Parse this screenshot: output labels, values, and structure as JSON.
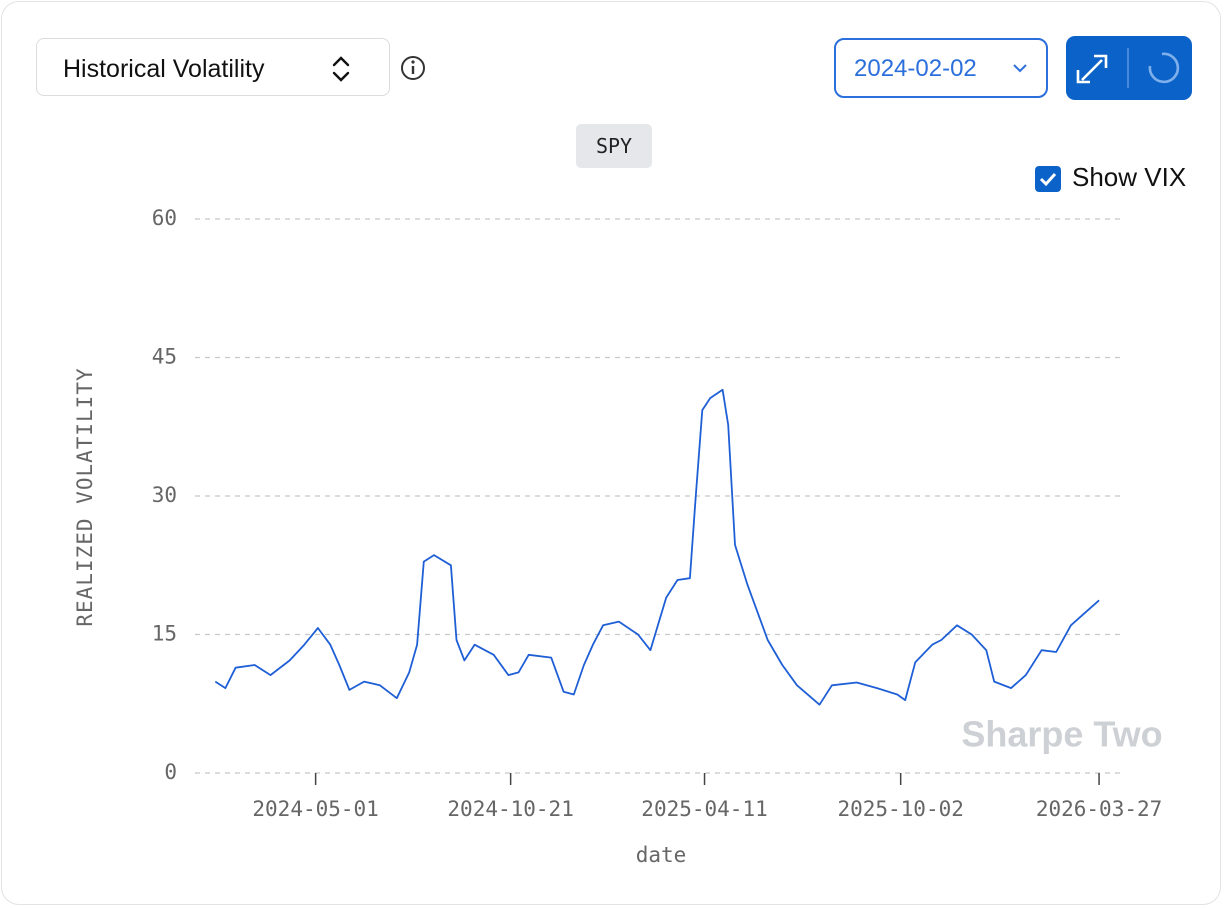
{
  "ui": {
    "metric": "Historical Volatility",
    "start_date": "2024-02-02",
    "ticker": "SPY",
    "vix_label": "Show VIX",
    "watermark": "Sharpe Two"
  },
  "chart_data": {
    "type": "line",
    "x_label": "date",
    "y_label": "REALIZED VOLATILITY",
    "x": [
      "2024-02-02",
      "2024-02-11",
      "2024-02-20",
      "2024-03-08",
      "2024-03-22",
      "2024-04-08",
      "2024-04-21",
      "2024-05-03",
      "2024-05-14",
      "2024-05-22",
      "2024-05-31",
      "2024-06-13",
      "2024-06-27",
      "2024-07-12",
      "2024-07-23",
      "2024-07-30",
      "2024-08-05",
      "2024-08-14",
      "2024-08-29",
      "2024-09-03",
      "2024-09-10",
      "2024-09-19",
      "2024-10-06",
      "2024-10-19",
      "2024-10-28",
      "2024-11-06",
      "2024-11-26",
      "2024-12-07",
      "2024-12-16",
      "2024-12-25",
      "2025-01-02",
      "2025-01-11",
      "2025-01-25",
      "2025-02-11",
      "2025-02-22",
      "2025-03-08",
      "2025-03-18",
      "2025-03-29",
      "2025-04-03",
      "2025-04-09",
      "2025-04-16",
      "2025-04-27",
      "2025-05-02",
      "2025-05-08",
      "2025-05-19",
      "2025-06-06",
      "2025-06-19",
      "2025-07-02",
      "2025-07-22",
      "2025-08-02",
      "2025-08-24",
      "2025-09-11",
      "2025-09-29",
      "2025-10-06",
      "2025-10-15",
      "2025-10-30",
      "2025-11-07",
      "2025-11-21",
      "2025-12-04",
      "2025-12-17",
      "2025-12-24",
      "2026-01-08",
      "2026-01-21",
      "2026-02-04",
      "2026-02-17",
      "2026-03-02",
      "2026-03-15",
      "2026-03-27"
    ],
    "series": [
      {
        "name": "SPY",
        "color": "#1f5fd6",
        "values": [
          9.9,
          9.2,
          11.4,
          11.7,
          10.6,
          12.2,
          13.9,
          15.7,
          13.9,
          11.7,
          9.0,
          9.9,
          9.5,
          8.1,
          10.9,
          13.9,
          22.9,
          23.6,
          22.5,
          14.4,
          12.2,
          13.9,
          12.8,
          10.6,
          10.9,
          12.8,
          12.5,
          8.8,
          8.5,
          11.7,
          13.9,
          16.0,
          16.4,
          15.0,
          13.3,
          19.0,
          20.9,
          21.1,
          29.6,
          39.3,
          40.6,
          41.5,
          37.7,
          24.7,
          20.4,
          14.4,
          11.7,
          9.5,
          7.4,
          9.5,
          9.8,
          9.2,
          8.5,
          7.9,
          12.0,
          13.9,
          14.4,
          16.0,
          15.0,
          13.3,
          9.9,
          9.2,
          10.6,
          13.3,
          13.1,
          16.0,
          17.4,
          18.7
        ]
      }
    ],
    "xlim": [
      "2024-01-15",
      "2026-04-19"
    ],
    "xticks": [
      "2024-05-01",
      "2024-10-21",
      "2025-04-11",
      "2025-10-02",
      "2026-03-27"
    ],
    "ylim": [
      0,
      60
    ],
    "yticks": [
      0,
      15,
      30,
      45,
      60
    ],
    "grid": true
  }
}
